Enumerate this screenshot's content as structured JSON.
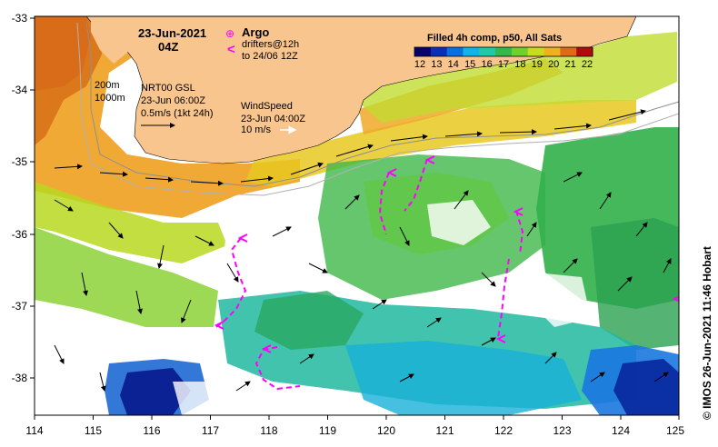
{
  "map": {
    "date_label": "23-Jun-2021",
    "time_label": "04Z",
    "legend": {
      "argo_symbol": "⊕",
      "argo_label": "Argo",
      "drifter_symbol": "<",
      "drifter_label_1": "drifters@12h",
      "drifter_label_2": "to 24/06 12Z"
    },
    "colorbar": {
      "title": "Filled 4h comp, p50, All Sats",
      "labels": [
        "12",
        "13",
        "14",
        "15",
        "16",
        "17",
        "18",
        "19",
        "20",
        "21",
        "22"
      ],
      "colors": [
        "#08006b",
        "#0a2fb4",
        "#0c6fe0",
        "#12b4e8",
        "#20c8a8",
        "#34b84a",
        "#6fd12a",
        "#c8dc1e",
        "#f0b21c",
        "#e06a14",
        "#b00a0a"
      ]
    },
    "bathymetry_labels": [
      "200m",
      "1000m"
    ],
    "current_block": {
      "line1": "NRT00 GSL",
      "line2": "23-Jun 06:00Z",
      "line3": "0.5m/s (1kt 24h)"
    },
    "wind_block": {
      "line1": "WindSpeed",
      "line2": "23-Jun 04:00Z",
      "line3": "10 m/s"
    },
    "x_ticks": [
      "114",
      "115",
      "116",
      "117",
      "118",
      "119",
      "120",
      "121",
      "122",
      "123",
      "124",
      "125"
    ],
    "y_ticks": [
      "-33",
      "-34",
      "-35",
      "-36",
      "-37",
      "-38"
    ],
    "credit": "©  IMOS 26-Jun-2021 11:46 Hobart",
    "colors": {
      "land": "#f9c58f",
      "drifter": "#ff00ff",
      "frame": "#000000"
    }
  }
}
